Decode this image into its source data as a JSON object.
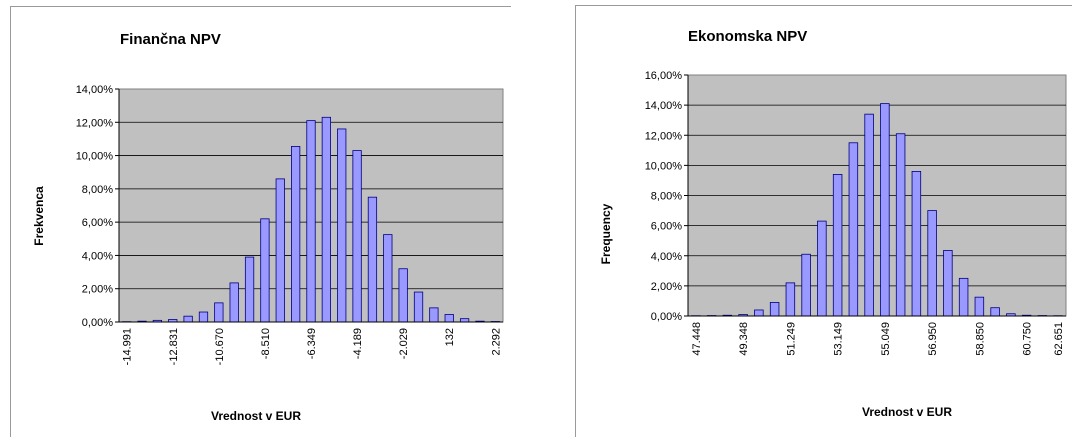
{
  "colors": {
    "plot_bg": "#c0c0c0",
    "bar_fill": "#9999ff",
    "bar_stroke": "#000080",
    "grid": "#000000"
  },
  "chart_data": [
    {
      "type": "bar",
      "title": "Finančna NPV",
      "xlabel": "Vrednost v EUR",
      "ylabel": "Frekvenca",
      "ylim": [
        0,
        14
      ],
      "y_ticks": [
        "0,00%",
        "2,00%",
        "4,00%",
        "6,00%",
        "8,00%",
        "10,00%",
        "12,00%",
        "14,00%"
      ],
      "x_tick_labels": [
        "-14.991",
        "-12.831",
        "-10.670",
        "-8.510",
        "-6.349",
        "-4.189",
        "-2.029",
        "132",
        "2.292"
      ],
      "grid": true,
      "values": [
        0.02,
        0.05,
        0.1,
        0.15,
        0.35,
        0.6,
        1.15,
        2.35,
        3.9,
        6.2,
        8.6,
        10.55,
        12.1,
        12.3,
        11.6,
        10.3,
        7.5,
        5.25,
        3.2,
        1.8,
        0.85,
        0.45,
        0.2,
        0.05,
        0.03
      ]
    },
    {
      "type": "bar",
      "title": "Ekonomska NPV",
      "xlabel": "Vrednost v EUR",
      "ylabel": "Frequency",
      "ylim": [
        0,
        16
      ],
      "y_ticks": [
        "0,00%",
        "2,00%",
        "4,00%",
        "6,00%",
        "8,00%",
        "10,00%",
        "12,00%",
        "14,00%",
        "16,00%"
      ],
      "x_tick_labels": [
        "47.448",
        "49.348",
        "51.249",
        "53.149",
        "55.049",
        "56.950",
        "58.850",
        "60.750",
        "62.651"
      ],
      "grid": true,
      "values": [
        0.02,
        0.03,
        0.05,
        0.1,
        0.4,
        0.9,
        2.2,
        4.1,
        6.3,
        9.4,
        11.5,
        13.4,
        14.1,
        12.1,
        9.6,
        7.0,
        4.35,
        2.5,
        1.25,
        0.55,
        0.15,
        0.05,
        0.03,
        0.02
      ]
    }
  ]
}
